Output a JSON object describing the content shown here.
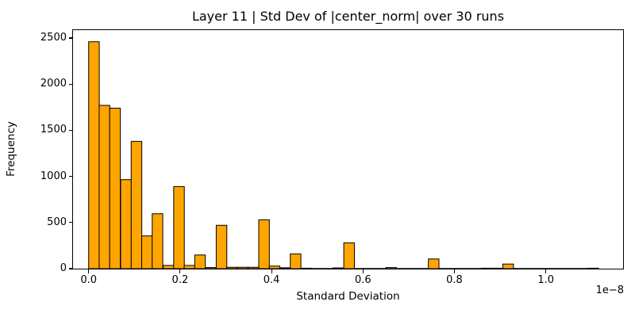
{
  "figure": {
    "kind": "matplotlib-histogram"
  },
  "chart_data": {
    "type": "bar",
    "subtype": "histogram",
    "title": "Layer 11 | Std Dev of |center_norm| over 30 runs",
    "xlabel": "Standard Deviation",
    "ylabel": "Frequency",
    "x_offset_text": "1e−8",
    "x_unit_scale": 1e-08,
    "bar_color": "#FFA500",
    "bar_edge_color": "#000000",
    "background_color": "#ffffff",
    "grid": false,
    "legend": null,
    "bin_width": 0.0232,
    "bin_start": [
      0.0,
      0.023,
      0.046,
      0.07,
      0.093,
      0.116,
      0.139,
      0.163,
      0.186,
      0.209,
      0.232,
      0.256,
      0.279,
      0.302,
      0.325,
      0.349,
      0.372,
      0.395,
      0.418,
      0.441,
      0.465,
      0.488,
      0.511,
      0.534,
      0.558,
      0.581,
      0.604,
      0.627,
      0.65,
      0.674,
      0.697,
      0.72,
      0.743,
      0.767,
      0.79,
      0.813,
      0.836,
      0.859,
      0.883,
      0.906,
      0.929,
      0.953,
      0.976,
      0.999,
      1.022,
      1.045,
      1.069,
      1.092
    ],
    "counts": [
      2460,
      1770,
      1740,
      965,
      1380,
      355,
      595,
      35,
      890,
      35,
      148,
      12,
      470,
      15,
      15,
      15,
      530,
      28,
      10,
      160,
      5,
      0,
      0,
      8,
      280,
      0,
      0,
      0,
      12,
      0,
      0,
      0,
      105,
      0,
      0,
      0,
      0,
      5,
      5,
      50,
      0,
      0,
      0,
      0,
      0,
      0,
      0,
      5
    ],
    "xticks": [
      0.0,
      0.2,
      0.4,
      0.6,
      0.8,
      1.0
    ],
    "xtick_labels": [
      "0.0",
      "0.2",
      "0.4",
      "0.6",
      "0.8",
      "1.0"
    ],
    "yticks": [
      0,
      500,
      1000,
      1500,
      2000,
      2500
    ],
    "ytick_labels": [
      "0",
      "500",
      "1000",
      "1500",
      "2000",
      "2500"
    ],
    "xlim": [
      -0.036,
      1.173
    ],
    "ylim": [
      0,
      2600
    ]
  }
}
